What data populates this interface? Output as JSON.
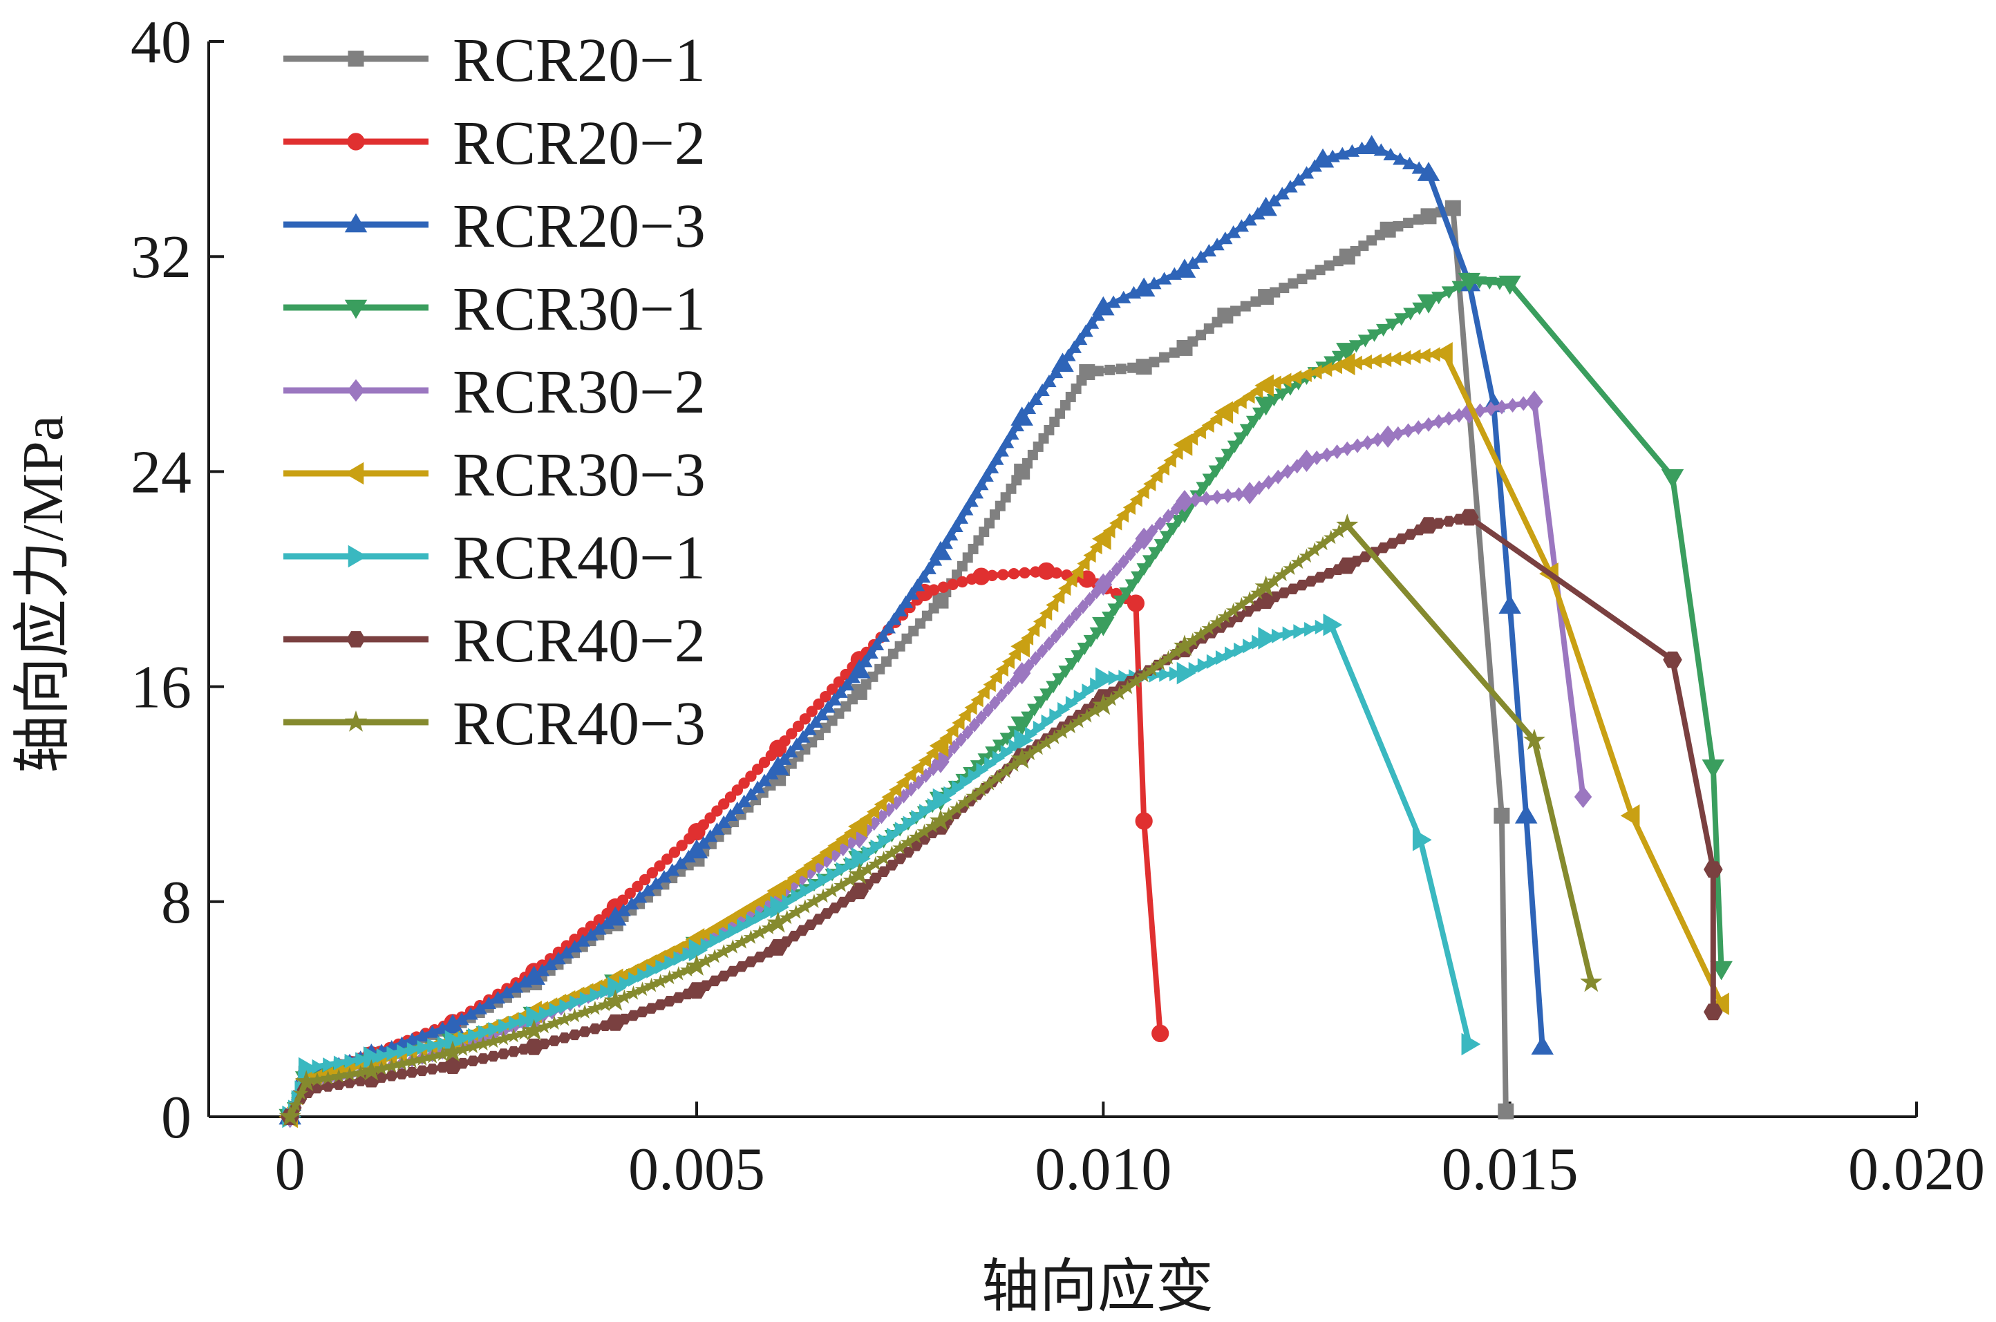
{
  "chart_data": {
    "type": "line",
    "xlabel": "轴向应变",
    "ylabel": "轴向应力/MPa",
    "xlim": [
      -0.001,
      0.02
    ],
    "ylim": [
      0,
      40
    ],
    "x_ticks": [
      0,
      0.005,
      0.01,
      0.015,
      0.02
    ],
    "x_tick_labels": [
      "0",
      "0.005",
      "0.010",
      "0.015",
      "0.020"
    ],
    "y_ticks": [
      0,
      8,
      16,
      24,
      32,
      40
    ],
    "y_tick_labels": [
      "0",
      "8",
      "16",
      "24",
      "32",
      "40"
    ],
    "legend_position": "top-left",
    "grid": false,
    "series": [
      {
        "name": "RCR20−1",
        "color": "#808080",
        "marker": "square",
        "points": [
          [
            0,
            0
          ],
          [
            0.0002,
            1.6
          ],
          [
            0.001,
            2.3
          ],
          [
            0.002,
            3.3
          ],
          [
            0.003,
            5.0
          ],
          [
            0.004,
            7.2
          ],
          [
            0.005,
            9.6
          ],
          [
            0.006,
            12.6
          ],
          [
            0.007,
            15.8
          ],
          [
            0.008,
            19.2
          ],
          [
            0.009,
            24.0
          ],
          [
            0.0098,
            27.7
          ],
          [
            0.0105,
            27.9
          ],
          [
            0.011,
            28.6
          ],
          [
            0.0115,
            29.8
          ],
          [
            0.012,
            30.5
          ],
          [
            0.013,
            32.0
          ],
          [
            0.0135,
            33.0
          ],
          [
            0.014,
            33.5
          ],
          [
            0.0143,
            33.8
          ],
          [
            0.0149,
            11.2
          ],
          [
            0.01495,
            0.2
          ]
        ]
      },
      {
        "name": "RCR20−2",
        "color": "#e03030",
        "marker": "circle",
        "points": [
          [
            0,
            0
          ],
          [
            0.0002,
            1.6
          ],
          [
            0.001,
            2.3
          ],
          [
            0.002,
            3.5
          ],
          [
            0.003,
            5.4
          ],
          [
            0.004,
            7.8
          ],
          [
            0.005,
            10.6
          ],
          [
            0.006,
            13.7
          ],
          [
            0.007,
            17.0
          ],
          [
            0.0078,
            19.5
          ],
          [
            0.0085,
            20.1
          ],
          [
            0.0093,
            20.3
          ],
          [
            0.0098,
            20.0
          ],
          [
            0.0104,
            19.1
          ],
          [
            0.0105,
            11.0
          ],
          [
            0.0107,
            3.1
          ]
        ]
      },
      {
        "name": "RCR20−3",
        "color": "#2e64b8",
        "marker": "triangle-up",
        "points": [
          [
            0,
            0
          ],
          [
            0.0002,
            1.6
          ],
          [
            0.001,
            2.3
          ],
          [
            0.002,
            3.4
          ],
          [
            0.003,
            5.2
          ],
          [
            0.004,
            7.4
          ],
          [
            0.005,
            9.9
          ],
          [
            0.006,
            13.0
          ],
          [
            0.007,
            16.6
          ],
          [
            0.008,
            21.0
          ],
          [
            0.009,
            26.0
          ],
          [
            0.0095,
            28.0
          ],
          [
            0.01,
            30.1
          ],
          [
            0.0105,
            30.8
          ],
          [
            0.011,
            31.5
          ],
          [
            0.012,
            33.8
          ],
          [
            0.0127,
            35.6
          ],
          [
            0.0133,
            36.1
          ],
          [
            0.014,
            35.1
          ],
          [
            0.0145,
            31.0
          ],
          [
            0.0148,
            26.5
          ],
          [
            0.015,
            19.0
          ],
          [
            0.0152,
            11.2
          ],
          [
            0.0154,
            2.6
          ]
        ]
      },
      {
        "name": "RCR30−1",
        "color": "#3a9e5e",
        "marker": "triangle-down",
        "points": [
          [
            0,
            0
          ],
          [
            0.0002,
            1.4
          ],
          [
            0.001,
            2.0
          ],
          [
            0.002,
            2.8
          ],
          [
            0.003,
            3.8
          ],
          [
            0.004,
            5.0
          ],
          [
            0.005,
            6.4
          ],
          [
            0.006,
            7.9
          ],
          [
            0.007,
            9.6
          ],
          [
            0.008,
            11.8
          ],
          [
            0.009,
            14.6
          ],
          [
            0.01,
            18.3
          ],
          [
            0.011,
            22.5
          ],
          [
            0.012,
            26.5
          ],
          [
            0.013,
            28.5
          ],
          [
            0.014,
            30.3
          ],
          [
            0.0145,
            31.1
          ],
          [
            0.015,
            31.0
          ],
          [
            0.017,
            23.8
          ],
          [
            0.0175,
            13.0
          ],
          [
            0.0176,
            5.5
          ]
        ]
      },
      {
        "name": "RCR30−2",
        "color": "#9b77c0",
        "marker": "diamond",
        "points": [
          [
            0,
            0
          ],
          [
            0.0002,
            1.2
          ],
          [
            0.001,
            1.7
          ],
          [
            0.002,
            2.5
          ],
          [
            0.003,
            3.6
          ],
          [
            0.004,
            4.9
          ],
          [
            0.005,
            6.4
          ],
          [
            0.006,
            8.2
          ],
          [
            0.007,
            10.4
          ],
          [
            0.008,
            13.2
          ],
          [
            0.009,
            16.5
          ],
          [
            0.01,
            19.8
          ],
          [
            0.0105,
            21.5
          ],
          [
            0.011,
            22.9
          ],
          [
            0.0118,
            23.2
          ],
          [
            0.0125,
            24.4
          ],
          [
            0.0135,
            25.3
          ],
          [
            0.0145,
            26.2
          ],
          [
            0.0153,
            26.6
          ],
          [
            0.0159,
            11.9
          ]
        ]
      },
      {
        "name": "RCR30−3",
        "color": "#c9a013",
        "marker": "triangle-left",
        "points": [
          [
            0,
            0
          ],
          [
            0.0002,
            1.4
          ],
          [
            0.001,
            2.0
          ],
          [
            0.002,
            2.8
          ],
          [
            0.003,
            3.9
          ],
          [
            0.004,
            5.1
          ],
          [
            0.005,
            6.6
          ],
          [
            0.006,
            8.4
          ],
          [
            0.007,
            10.8
          ],
          [
            0.008,
            13.8
          ],
          [
            0.009,
            17.5
          ],
          [
            0.01,
            21.5
          ],
          [
            0.011,
            25.0
          ],
          [
            0.0115,
            26.2
          ],
          [
            0.012,
            27.2
          ],
          [
            0.013,
            28.0
          ],
          [
            0.0142,
            28.4
          ],
          [
            0.0155,
            20.2
          ],
          [
            0.0165,
            11.2
          ],
          [
            0.0176,
            4.2
          ]
        ]
      },
      {
        "name": "RCR40−1",
        "color": "#3ab8c0",
        "marker": "triangle-right",
        "points": [
          [
            0,
            0
          ],
          [
            0.0002,
            1.8
          ],
          [
            0.001,
            2.2
          ],
          [
            0.002,
            2.8
          ],
          [
            0.003,
            3.7
          ],
          [
            0.004,
            4.8
          ],
          [
            0.005,
            6.2
          ],
          [
            0.006,
            7.8
          ],
          [
            0.007,
            9.6
          ],
          [
            0.008,
            11.8
          ],
          [
            0.009,
            14.0
          ],
          [
            0.01,
            16.3
          ],
          [
            0.011,
            16.5
          ],
          [
            0.012,
            17.8
          ],
          [
            0.0128,
            18.3
          ],
          [
            0.0139,
            10.3
          ],
          [
            0.0145,
            2.7
          ]
        ]
      },
      {
        "name": "RCR40−2",
        "color": "#7a4040",
        "marker": "hexagon",
        "points": [
          [
            0,
            0
          ],
          [
            0.0002,
            1.0
          ],
          [
            0.001,
            1.4
          ],
          [
            0.002,
            1.9
          ],
          [
            0.003,
            2.6
          ],
          [
            0.004,
            3.5
          ],
          [
            0.005,
            4.7
          ],
          [
            0.006,
            6.3
          ],
          [
            0.007,
            8.4
          ],
          [
            0.008,
            10.8
          ],
          [
            0.009,
            13.4
          ],
          [
            0.01,
            15.6
          ],
          [
            0.011,
            17.4
          ],
          [
            0.012,
            19.2
          ],
          [
            0.013,
            20.5
          ],
          [
            0.014,
            22.0
          ],
          [
            0.0145,
            22.3
          ],
          [
            0.017,
            17.0
          ],
          [
            0.0175,
            9.2
          ],
          [
            0.0175,
            3.9
          ]
        ]
      },
      {
        "name": "RCR40−3",
        "color": "#858a2e",
        "marker": "star",
        "points": [
          [
            0,
            0
          ],
          [
            0.0002,
            1.3
          ],
          [
            0.001,
            1.7
          ],
          [
            0.002,
            2.4
          ],
          [
            0.003,
            3.2
          ],
          [
            0.004,
            4.3
          ],
          [
            0.005,
            5.6
          ],
          [
            0.006,
            7.2
          ],
          [
            0.007,
            9.0
          ],
          [
            0.008,
            11.0
          ],
          [
            0.009,
            13.3
          ],
          [
            0.01,
            15.3
          ],
          [
            0.011,
            17.5
          ],
          [
            0.012,
            19.7
          ],
          [
            0.013,
            22.0
          ],
          [
            0.0153,
            14.0
          ],
          [
            0.016,
            5.0
          ]
        ]
      }
    ]
  }
}
